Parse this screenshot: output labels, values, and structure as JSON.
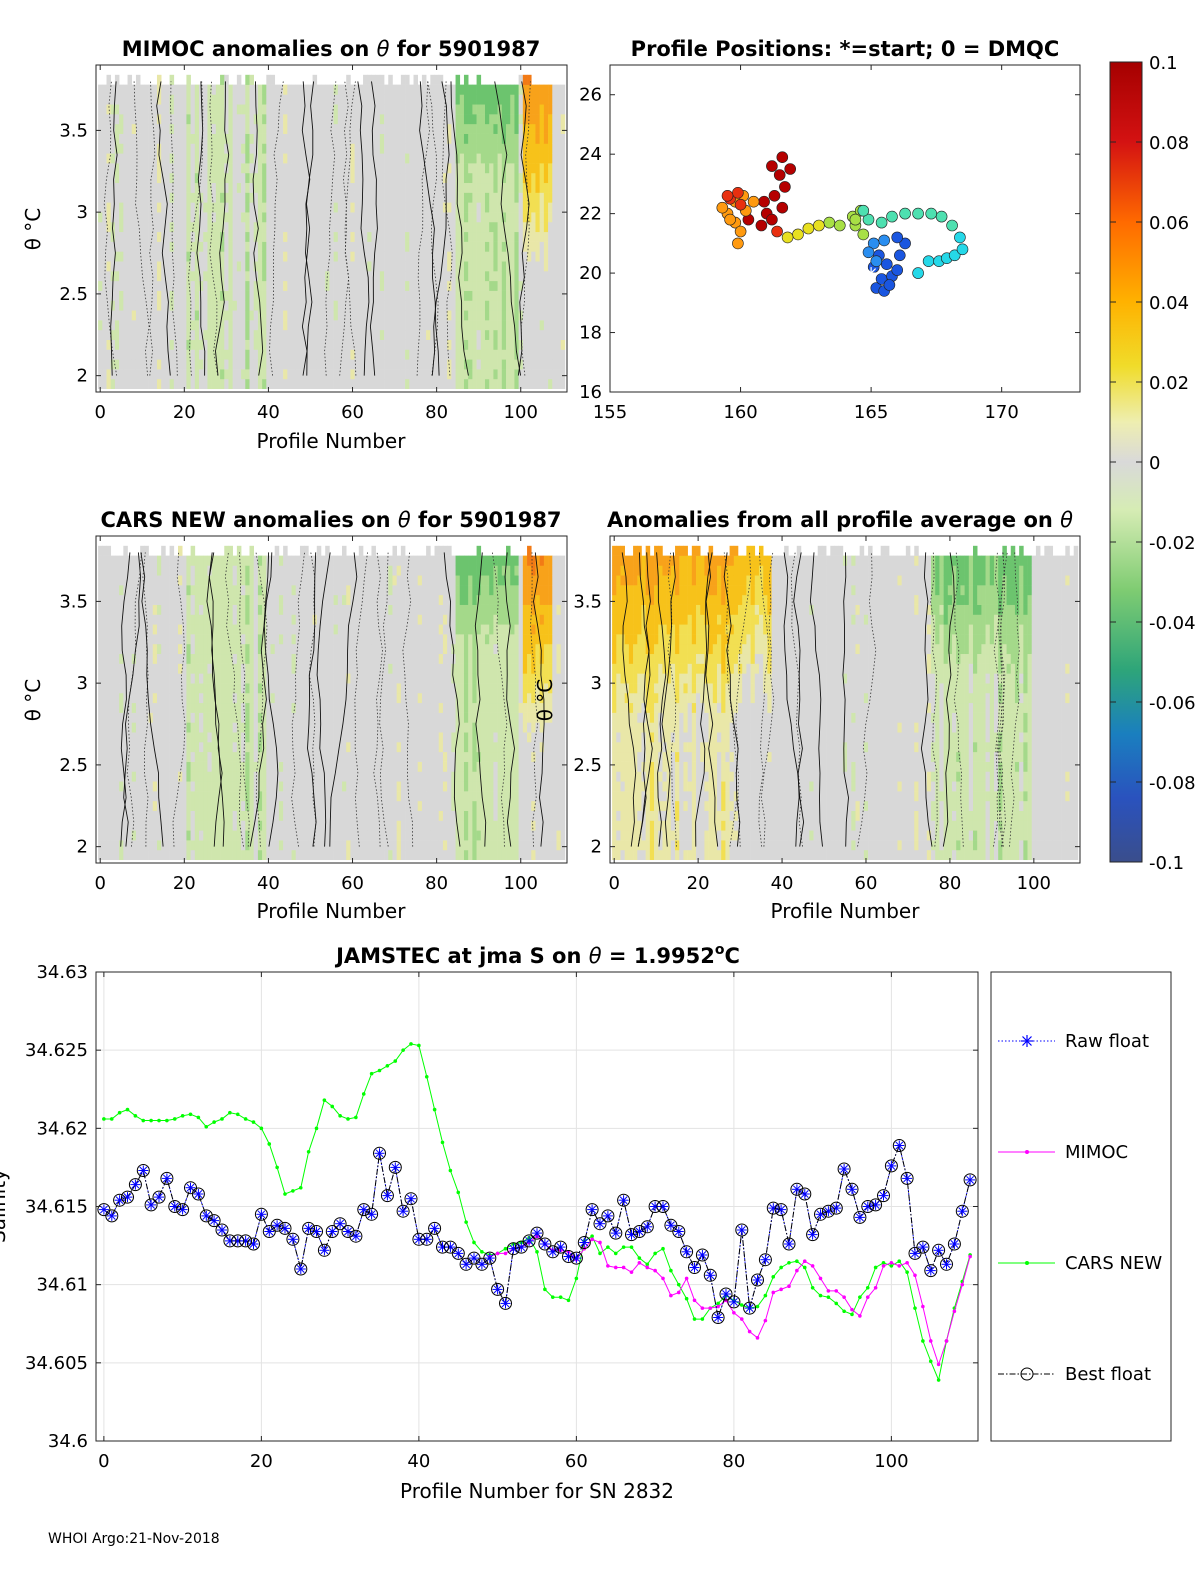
{
  "footer": "WHOI Argo:21-Nov-2018",
  "colorbar": {
    "ticks": [
      "0.1",
      "0.08",
      "0.06",
      "0.04",
      "0.02",
      "0",
      "-0.02",
      "-0.04",
      "-0.06",
      "-0.08",
      "-0.1"
    ],
    "range": [
      -0.1,
      0.1
    ]
  },
  "chart_data": [
    {
      "type": "heatmap",
      "title_prefix": "MIMOC anomalies on ",
      "title_symbol": "θ",
      "title_suffix": "  for 5901987",
      "xlabel": "Profile Number",
      "ylabel": "θ °C",
      "xlim": [
        -1,
        111
      ],
      "ylim": [
        1.9,
        3.9
      ],
      "xticks": [
        "0",
        "20",
        "40",
        "60",
        "80",
        "100"
      ],
      "yticks": [
        "2",
        "2.5",
        "3",
        "3.5"
      ]
    },
    {
      "type": "scatter",
      "title": "Profile Positions: *=start; 0 = DMQC",
      "xlim": [
        155,
        173
      ],
      "ylim": [
        16,
        27
      ],
      "xticks": [
        "155",
        "160",
        "165",
        "170"
      ],
      "yticks": [
        "16",
        "18",
        "20",
        "22",
        "24",
        "26"
      ],
      "start_marker": [
        165,
        20
      ]
    },
    {
      "type": "heatmap",
      "title_prefix": "CARS NEW anomalies on ",
      "title_symbol": "θ",
      "title_suffix": " for 5901987",
      "xlabel": "Profile Number",
      "ylabel": "θ °C",
      "xlim": [
        -1,
        111
      ],
      "ylim": [
        1.9,
        3.9
      ],
      "xticks": [
        "0",
        "20",
        "40",
        "60",
        "80",
        "100"
      ],
      "yticks": [
        "2",
        "2.5",
        "3",
        "3.5"
      ]
    },
    {
      "type": "heatmap",
      "title_prefix": "Anomalies from all profile average on ",
      "title_symbol": "θ",
      "title_suffix": "",
      "xlabel": "Profile Number",
      "ylabel": "θ °C",
      "xlim": [
        -1,
        111
      ],
      "ylim": [
        1.9,
        3.9
      ],
      "xticks": [
        "0",
        "20",
        "40",
        "60",
        "80",
        "100"
      ],
      "yticks": [
        "2",
        "2.5",
        "3",
        "3.5"
      ]
    },
    {
      "type": "line",
      "title_prefix": "JAMSTEC at jma S on ",
      "title_symbol": "θ",
      "title_value": " = 1.9952",
      "title_sup": "o",
      "title_unit": "C",
      "xlabel": "Profile Number for SN 2832",
      "ylabel": "Salinity",
      "xlim": [
        -1,
        111
      ],
      "ylim": [
        34.6,
        34.63
      ],
      "xticks": [
        "0",
        "20",
        "40",
        "60",
        "80",
        "100"
      ],
      "yticks": [
        "34.6",
        "34.605",
        "34.61",
        "34.615",
        "34.62",
        "34.625",
        "34.63"
      ],
      "series": [
        {
          "name": "Raw float",
          "color": "#0000ff",
          "values": [
            34.6148,
            34.6144,
            34.6154,
            34.6156,
            34.6164,
            34.6173,
            34.6151,
            34.6156,
            34.6168,
            34.615,
            34.6148,
            34.6162,
            34.6158,
            34.6144,
            34.6141,
            34.6135,
            34.6128,
            34.6128,
            34.6128,
            34.6126,
            34.6145,
            34.6134,
            34.6138,
            34.6136,
            34.6129,
            34.611,
            34.6136,
            34.6134,
            34.6122,
            34.6134,
            34.6139,
            34.6134,
            34.6131,
            34.6148,
            34.6145,
            34.6184,
            34.6157,
            34.6175,
            34.6147,
            34.6155,
            34.6129,
            34.6129,
            34.6136,
            34.6124,
            34.6124,
            34.612,
            34.6113,
            34.6117,
            34.6113,
            34.6117,
            34.6097,
            34.6088,
            34.6123,
            34.6124,
            34.6128,
            34.6133,
            34.6126,
            34.6121,
            34.6124,
            34.6118,
            34.6117,
            34.6127,
            34.6148,
            34.6139,
            34.6144,
            34.6133,
            34.6154,
            34.6132,
            34.6134,
            34.6137,
            34.615,
            34.615,
            34.6138,
            34.6134,
            34.6121,
            34.6111,
            34.6119,
            34.6106,
            34.6079,
            34.6094,
            34.6089,
            34.6135,
            34.6085,
            34.6103,
            34.6116,
            34.6149,
            34.6148,
            34.6126,
            34.6161,
            34.6158,
            34.6132,
            34.6145,
            34.6147,
            34.6149,
            34.6174,
            34.6161,
            34.6143,
            34.615,
            34.6151,
            34.6157,
            34.6176,
            34.6189,
            34.6168,
            34.612,
            34.6124,
            34.6109,
            34.6122,
            34.6113,
            34.6126,
            34.6147,
            34.6167
          ]
        },
        {
          "name": "MIMOC",
          "color": "#ff00ff",
          "values": [
            null,
            null,
            null,
            null,
            null,
            null,
            null,
            null,
            null,
            null,
            null,
            null,
            null,
            null,
            null,
            null,
            null,
            null,
            null,
            null,
            null,
            null,
            null,
            null,
            null,
            null,
            null,
            null,
            null,
            null,
            null,
            null,
            null,
            null,
            null,
            null,
            null,
            null,
            null,
            null,
            null,
            null,
            null,
            null,
            null,
            null,
            null,
            null,
            null,
            34.6118,
            34.612,
            34.612,
            34.6123,
            34.6124,
            34.6127,
            34.6131,
            34.6126,
            34.6122,
            34.6122,
            34.6121,
            34.6116,
            34.6123,
            34.6129,
            34.6127,
            34.6112,
            34.6111,
            34.6111,
            34.6108,
            34.6114,
            34.6111,
            34.6109,
            34.6104,
            34.6093,
            34.6095,
            34.6104,
            34.609,
            34.6085,
            34.6085,
            34.6086,
            34.609,
            34.6082,
            34.6078,
            34.607,
            34.6066,
            34.6077,
            34.6095,
            34.6097,
            34.6099,
            34.6109,
            34.6115,
            34.6112,
            34.6104,
            34.6096,
            34.6096,
            34.6092,
            34.6084,
            34.608,
            34.6092,
            34.6098,
            34.6112,
            34.6114,
            34.6112,
            34.6114,
            34.6106,
            34.6086,
            34.6064,
            34.6049,
            34.6064,
            34.6083,
            34.61,
            34.6118
          ]
        },
        {
          "name": "CARS NEW",
          "color": "#00ff00",
          "values": [
            34.6206,
            34.6206,
            34.621,
            34.6212,
            34.6208,
            34.6205,
            34.6205,
            34.6205,
            34.6205,
            34.6206,
            34.6208,
            34.6209,
            34.6207,
            34.6201,
            34.6204,
            34.6206,
            34.621,
            34.6209,
            34.6206,
            34.6204,
            34.62,
            34.619,
            34.6175,
            34.6158,
            34.616,
            34.6162,
            34.6185,
            34.62,
            34.6218,
            34.6214,
            34.6208,
            34.6206,
            34.6207,
            34.6222,
            34.6235,
            34.6237,
            34.624,
            34.6243,
            34.625,
            34.6254,
            34.6253,
            34.6233,
            34.6212,
            34.6191,
            34.6173,
            34.6159,
            34.614,
            34.6127,
            34.6121,
            34.6119,
            34.612,
            34.6123,
            34.6126,
            34.6127,
            34.613,
            34.6121,
            34.6097,
            34.6092,
            34.6092,
            34.609,
            34.6104,
            34.6128,
            34.6131,
            34.612,
            34.6124,
            34.612,
            34.6124,
            34.6124,
            34.6117,
            34.6113,
            34.612,
            34.6123,
            34.6109,
            34.61,
            34.6091,
            34.6078,
            34.6078,
            34.6085,
            34.6088,
            34.6093,
            34.609,
            34.6087,
            34.6085,
            34.6086,
            34.6093,
            34.6105,
            34.6111,
            34.6114,
            34.6115,
            34.6111,
            34.6098,
            34.6093,
            34.6092,
            34.6088,
            34.6083,
            34.6081,
            34.6092,
            34.6098,
            34.6111,
            34.6114,
            34.6112,
            34.6115,
            34.6108,
            34.6085,
            34.6064,
            34.6051,
            34.6039,
            34.6064,
            34.6085,
            34.6102,
            34.6119
          ]
        },
        {
          "name": "Best float",
          "color": "#000000",
          "values": [
            34.6148,
            34.6144,
            34.6154,
            34.6156,
            34.6164,
            34.6173,
            34.6151,
            34.6156,
            34.6168,
            34.615,
            34.6148,
            34.6162,
            34.6158,
            34.6144,
            34.6141,
            34.6135,
            34.6128,
            34.6128,
            34.6128,
            34.6126,
            34.6145,
            34.6134,
            34.6138,
            34.6136,
            34.6129,
            34.611,
            34.6136,
            34.6134,
            34.6122,
            34.6134,
            34.6139,
            34.6134,
            34.6131,
            34.6148,
            34.6145,
            34.6184,
            34.6157,
            34.6175,
            34.6147,
            34.6155,
            34.6129,
            34.6129,
            34.6136,
            34.6124,
            34.6124,
            34.612,
            34.6113,
            34.6117,
            34.6113,
            34.6117,
            34.6097,
            34.6088,
            34.6123,
            34.6124,
            34.6128,
            34.6133,
            34.6126,
            34.6121,
            34.6124,
            34.6118,
            34.6117,
            34.6127,
            34.6148,
            34.6139,
            34.6144,
            34.6133,
            34.6154,
            34.6132,
            34.6134,
            34.6137,
            34.615,
            34.615,
            34.6138,
            34.6134,
            34.6121,
            34.6111,
            34.6119,
            34.6106,
            34.6079,
            34.6094,
            34.6089,
            34.6135,
            34.6085,
            34.6103,
            34.6116,
            34.6149,
            34.6148,
            34.6126,
            34.6161,
            34.6158,
            34.6132,
            34.6145,
            34.6147,
            34.6149,
            34.6174,
            34.6161,
            34.6143,
            34.615,
            34.6151,
            34.6157,
            34.6176,
            34.6189,
            34.6168,
            34.612,
            34.6124,
            34.6109,
            34.6122,
            34.6113,
            34.6126,
            34.6147,
            34.6167
          ]
        }
      ]
    }
  ]
}
